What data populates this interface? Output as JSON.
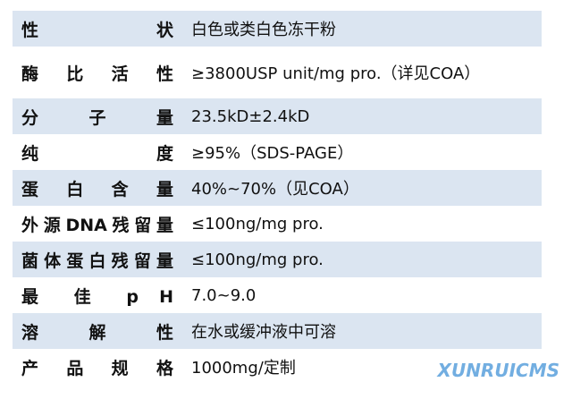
{
  "table": {
    "rows": [
      [
        "性 状",
        "白色或类白色冻干粉"
      ],
      [
        "酶 比 活 性",
        "≥3800USP unit/mg pro.（详见COA）"
      ],
      [
        "分 子 量",
        "23.5kD±2.4kD"
      ],
      [
        "纯 度",
        "≥95%（SDS-PAGE）"
      ],
      [
        "蛋 白 含 量",
        "40%~70%（见COA）"
      ],
      [
        "外源DNA残留量",
        "≤100ng/mg pro."
      ],
      [
        "菌体蛋白残留量",
        "≤100ng/mg pro."
      ],
      [
        "最 佳 p H",
        "7.0~9.0"
      ],
      [
        "溶 解 性",
        "在水或缓冲液中可溶"
      ],
      [
        "产 品 规 格",
        "1000mg/定制"
      ]
    ]
  },
  "watermark": "XUNRUICMS"
}
